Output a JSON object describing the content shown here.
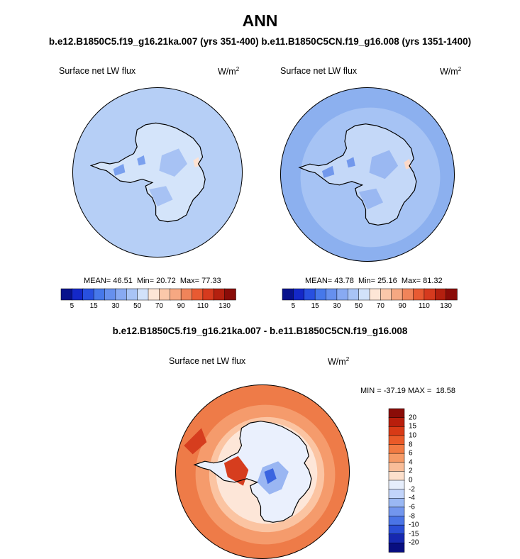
{
  "title": "ANN",
  "subtitle": "b.e12.B1850C5.f19_g16.21ka.007 (yrs 351-400)  b.e11.B1850C5CN.f19_g16.008 (yrs 1351-1400)",
  "diff_title": "b.e12.B1850C5.f19_g16.21ka.007 - b.e11.B1850C5CN.f19_g16.008",
  "colors": {
    "coast": "#000000",
    "map_border": "#000000"
  },
  "chart_data": [
    {
      "type": "heatmap",
      "name": "left-panel",
      "projection": "south-polar-stereographic",
      "variable": "Surface net LW flux",
      "units_base": "W/m",
      "units_exp": "2",
      "stats": {
        "mean_label": "MEAN=",
        "mean": "46.51",
        "min_label": "Min=",
        "min": "20.72",
        "max_label": "Max=",
        "max": "77.33"
      },
      "colorbar": {
        "ticks": [
          "5",
          "15",
          "30",
          "50",
          "70",
          "90",
          "110",
          "130"
        ],
        "colors": [
          "#08128c",
          "#1428c8",
          "#2850e0",
          "#4678ea",
          "#6690ee",
          "#88aaf2",
          "#a8c4f6",
          "#d2e2fa",
          "#fde6d6",
          "#fac8aa",
          "#f6a882",
          "#f0845a",
          "#e85a32",
          "#d63a1e",
          "#b4200f",
          "#8a0c08"
        ]
      },
      "field": {
        "ocean": "#b6cff6",
        "land": "#d4e4fa",
        "patches": "#a7c2f4",
        "dark": "#7aa0ee",
        "warm": "#fde2d2"
      }
    },
    {
      "type": "heatmap",
      "name": "right-panel",
      "projection": "south-polar-stereographic",
      "variable": "Surface net LW flux",
      "units_base": "W/m",
      "units_exp": "2",
      "stats": {
        "mean_label": "MEAN=",
        "mean": "43.78",
        "min_label": "Min=",
        "min": "25.16",
        "max_label": "Max=",
        "max": "81.32"
      },
      "colorbar": {
        "ticks": [
          "5",
          "15",
          "30",
          "50",
          "70",
          "90",
          "110",
          "130"
        ],
        "colors": [
          "#08128c",
          "#1428c8",
          "#2850e0",
          "#4678ea",
          "#6690ee",
          "#88aaf2",
          "#a8c4f6",
          "#d2e2fa",
          "#fde6d6",
          "#fac8aa",
          "#f6a882",
          "#f0845a",
          "#e85a32",
          "#d63a1e",
          "#b4200f",
          "#8a0c08"
        ]
      },
      "field": {
        "ocean": "#a6c3f4",
        "outer": "#8cb0ef",
        "land": "#c4d8f8",
        "patches": "#9ab8f2",
        "dark": "#7298ec",
        "warm": "#fbd8c8"
      }
    },
    {
      "type": "heatmap",
      "name": "difference-panel",
      "projection": "south-polar-stereographic",
      "variable": "Surface net LW flux",
      "units_base": "W/m",
      "units_exp": "2",
      "stats": {
        "min_label": "MIN =",
        "min": "-37.19",
        "max_label": "MAX =",
        "max": "18.58"
      },
      "colorbar": {
        "ticks": [
          "20",
          "15",
          "10",
          "8",
          "6",
          "4",
          "2",
          "0",
          "-2",
          "-4",
          "-6",
          "-8",
          "-10",
          "-15",
          "-20"
        ],
        "colors": [
          "#8a0c08",
          "#b81e0c",
          "#d83a16",
          "#ea5a28",
          "#f27a42",
          "#f69a66",
          "#f9bd98",
          "#fde0cc",
          "#e6eefc",
          "#c2d4fa",
          "#9ab8f4",
          "#7296ee",
          "#4a74e6",
          "#2a4ed6",
          "#1628b0",
          "#080e80"
        ]
      },
      "field": {
        "outer": "#ee7b48",
        "ring": "#f59b6c",
        "inner": "#fbc4a2",
        "pale": "#fde6d8",
        "land": "#eaf0fd",
        "blue": "#9ab6f2",
        "deep": "#3a64e0",
        "red": "#d63d1e"
      }
    }
  ]
}
